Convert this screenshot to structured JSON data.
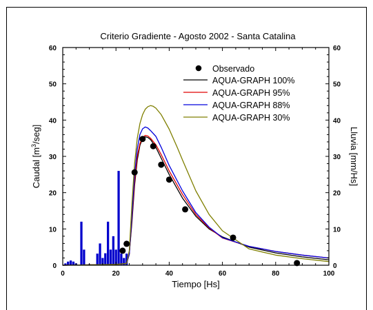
{
  "chart_data": {
    "type": "line",
    "title": "Criterio Gradiente - Agosto 2002 - Santa Catalina",
    "xlabel": "Tiempo [Hs]",
    "ylabel_left": {
      "base": "Caudal [m",
      "sup": "3",
      "tail": "/seg]"
    },
    "ylabel_right": "Lluvia [mm/Hs]",
    "xlim": [
      0,
      100
    ],
    "ylim": [
      0,
      60
    ],
    "y2lim": [
      0,
      60
    ],
    "xticks": [
      "0",
      "20",
      "40",
      "60",
      "80",
      "100"
    ],
    "yticks": [
      "0",
      "10",
      "20",
      "30",
      "40",
      "50",
      "60"
    ],
    "y2ticks": [
      "0",
      "10",
      "20",
      "30",
      "40",
      "50",
      "60"
    ],
    "legend_position": "top-right",
    "legend": [
      "Observado",
      "AQUA-GRAPH 100%",
      "AQUA-GRAPH  95%",
      "AQUA-GRAPH  88%",
      "AQUA-GRAPH  30%"
    ],
    "colors": {
      "obs": "#000000",
      "s100": "#000000",
      "s95": "#e00000",
      "s88": "#0000dd",
      "s30": "#7f7f00",
      "rain": "#0000cc"
    },
    "observed": [
      {
        "x": 22.5,
        "y": 4.0
      },
      {
        "x": 24,
        "y": 5.9
      },
      {
        "x": 27,
        "y": 25.6
      },
      {
        "x": 30,
        "y": 34.8
      },
      {
        "x": 34,
        "y": 32.8
      },
      {
        "x": 37,
        "y": 27.7
      },
      {
        "x": 40,
        "y": 23.6
      },
      {
        "x": 46,
        "y": 15.4
      },
      {
        "x": 64,
        "y": 7.6
      },
      {
        "x": 88,
        "y": 0.6
      }
    ],
    "rain": [
      {
        "x": 1,
        "y": 0.5
      },
      {
        "x": 2,
        "y": 1.0
      },
      {
        "x": 3,
        "y": 1.3
      },
      {
        "x": 4,
        "y": 1.0
      },
      {
        "x": 5,
        "y": 0.5
      },
      {
        "x": 7,
        "y": 12.0
      },
      {
        "x": 8,
        "y": 4.3
      },
      {
        "x": 10,
        "y": 0.3
      },
      {
        "x": 13,
        "y": 3.2
      },
      {
        "x": 14,
        "y": 6.0
      },
      {
        "x": 15,
        "y": 2.0
      },
      {
        "x": 16,
        "y": 3.3
      },
      {
        "x": 17,
        "y": 12.0
      },
      {
        "x": 18,
        "y": 4.3
      },
      {
        "x": 19,
        "y": 8.0
      },
      {
        "x": 20,
        "y": 4.3
      },
      {
        "x": 21,
        "y": 26.0
      },
      {
        "x": 22,
        "y": 3.2
      },
      {
        "x": 23,
        "y": 2.0
      },
      {
        "x": 24,
        "y": 3.2
      }
    ],
    "series": [
      {
        "name": "AQUA-GRAPH 100%",
        "color_key": "s100",
        "x": [
          0,
          20,
          24,
          25,
          26,
          27,
          28,
          29,
          30,
          31,
          32,
          33,
          35,
          37,
          40,
          45,
          50,
          55,
          60,
          70,
          80,
          90,
          100
        ],
        "y": [
          0,
          0.2,
          0.5,
          3,
          12,
          22,
          29,
          33,
          34.9,
          35.4,
          35.2,
          34.6,
          32.5,
          29.5,
          25,
          18.5,
          13.5,
          10,
          7.8,
          5.0,
          3.4,
          2.3,
          1.5
        ]
      },
      {
        "name": "AQUA-GRAPH  95%",
        "color_key": "s95",
        "x": [
          0,
          20,
          24,
          25,
          26,
          27,
          28,
          29,
          30,
          31,
          32,
          33,
          35,
          37,
          40,
          45,
          50,
          55,
          60,
          70,
          80,
          90,
          100
        ],
        "y": [
          0,
          0.2,
          0.5,
          3,
          13,
          23,
          30,
          33.5,
          35.2,
          35.8,
          35.6,
          35,
          33.2,
          30.5,
          26,
          19.5,
          14,
          10.3,
          7.5,
          5.2,
          3.8,
          2.8,
          2.0
        ]
      },
      {
        "name": "AQUA-GRAPH  88%",
        "color_key": "s88",
        "x": [
          0,
          20,
          24,
          25,
          26,
          27,
          28,
          29,
          30,
          31,
          32,
          33,
          35,
          37,
          40,
          45,
          50,
          55,
          60,
          70,
          80,
          90,
          100
        ],
        "y": [
          0,
          0.2,
          0.5,
          3,
          14,
          25,
          32,
          36,
          37.6,
          38.1,
          37.8,
          37.1,
          35.5,
          32.5,
          27.5,
          20.5,
          14.5,
          10.5,
          7.6,
          5.2,
          3.8,
          2.8,
          2.0
        ]
      },
      {
        "name": "AQUA-GRAPH  30%",
        "color_key": "s30",
        "x": [
          0,
          20,
          24,
          25,
          26,
          27,
          28,
          29,
          30,
          31,
          32,
          33,
          34,
          35,
          37,
          40,
          43,
          45,
          50,
          55,
          60,
          70,
          80,
          90,
          100
        ],
        "y": [
          0,
          0.2,
          0.5,
          4,
          17,
          28,
          35,
          39,
          41.5,
          43,
          43.7,
          44,
          43.8,
          43.3,
          41.5,
          37.5,
          32.5,
          29,
          20.5,
          14,
          9.5,
          4.5,
          2.8,
          1.8,
          1.0
        ]
      }
    ]
  }
}
